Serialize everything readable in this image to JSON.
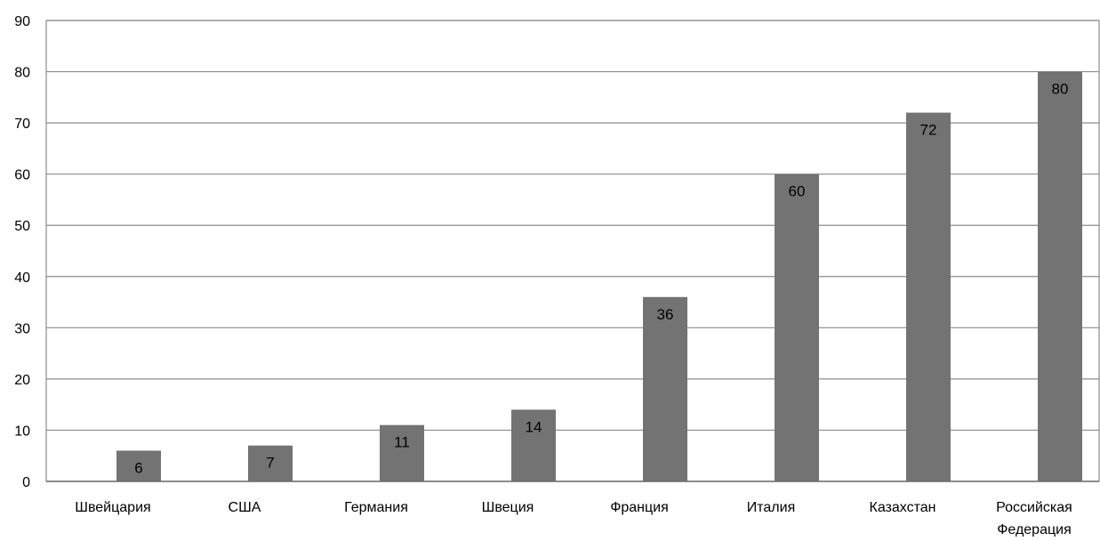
{
  "chart_data": {
    "type": "bar",
    "title": "",
    "xlabel": "",
    "ylabel": "",
    "categories": [
      [
        "Швейцария"
      ],
      [
        "США"
      ],
      [
        "Германия"
      ],
      [
        "Швеция"
      ],
      [
        "Франция"
      ],
      [
        "Италия"
      ],
      [
        "Казахстан"
      ],
      [
        "Российская",
        "Федерация"
      ]
    ],
    "values": [
      6,
      7,
      11,
      14,
      36,
      60,
      72,
      80
    ],
    "ylim": [
      0,
      90
    ],
    "yticks": [
      0,
      10,
      20,
      30,
      40,
      50,
      60,
      70,
      80,
      90
    ],
    "grid": true,
    "legend": "none",
    "colors": {
      "bar": "#737373",
      "grid": "#8c8c8c",
      "frame": "#8c8c8c"
    },
    "data_labels": true
  }
}
